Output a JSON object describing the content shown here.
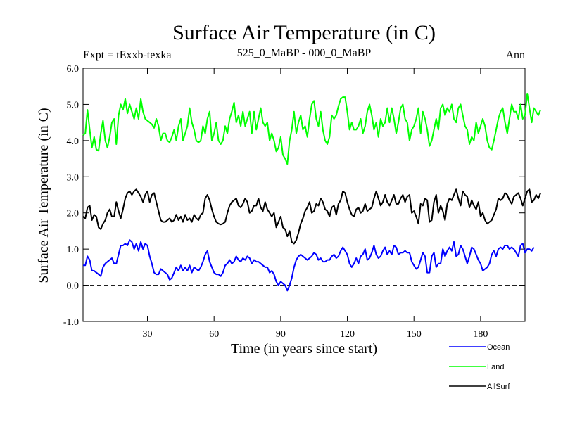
{
  "chart_data": {
    "type": "line",
    "title": "Surface Air Temperature (in C)",
    "subtitle_left": "Expt = tExxb-texka",
    "subtitle_center": "525_0_MaBP - 000_0_MaBP",
    "subtitle_right": "Ann",
    "xlabel": "Time (in years since start)",
    "ylabel": "Surface Air Temperature (in C)",
    "xlim": [
      1,
      200
    ],
    "ylim": [
      -1.0,
      6.0
    ],
    "xticks": [
      30,
      60,
      90,
      120,
      150,
      180
    ],
    "xtick_labels": [
      "30",
      "60",
      "90",
      "120",
      "150",
      "180"
    ],
    "yticks": [
      -1.0,
      0.0,
      1.0,
      2.0,
      3.0,
      4.0,
      5.0,
      6.0
    ],
    "ytick_labels": [
      "-1.0",
      "0.0",
      "1.0",
      "2.0",
      "3.0",
      "4.0",
      "5.0",
      "6.0"
    ],
    "reference_line": 0.0,
    "legend_position": "bottom-right",
    "x_start": 1,
    "x_step": 1,
    "series": [
      {
        "name": "Land",
        "color": "#00ff00",
        "values": [
          4.15,
          4.2,
          4.85,
          4.3,
          3.8,
          4.1,
          3.75,
          3.72,
          4.2,
          4.55,
          4.0,
          3.8,
          4.1,
          4.5,
          4.6,
          3.9,
          4.7,
          5.0,
          4.85,
          5.15,
          4.75,
          5.0,
          4.8,
          4.6,
          4.9,
          4.6,
          5.15,
          4.8,
          4.6,
          4.55,
          4.5,
          4.45,
          4.35,
          4.6,
          4.4,
          4.0,
          4.2,
          4.2,
          4.0,
          3.95,
          4.1,
          4.3,
          4.0,
          4.4,
          4.6,
          4.0,
          4.2,
          4.4,
          4.9,
          4.5,
          4.3,
          4.0,
          3.95,
          4.0,
          4.4,
          4.2,
          4.6,
          4.8,
          4.0,
          4.2,
          4.5,
          4.0,
          3.9,
          4.0,
          4.4,
          4.2,
          4.6,
          4.8,
          5.05,
          4.5,
          4.7,
          4.4,
          4.8,
          4.4,
          4.6,
          4.8,
          4.2,
          4.8,
          4.3,
          4.6,
          4.9,
          4.5,
          4.4,
          4.5,
          4.0,
          4.2,
          4.0,
          3.7,
          3.8,
          4.1,
          3.6,
          3.5,
          3.35,
          4.0,
          4.3,
          4.8,
          4.2,
          4.5,
          4.7,
          4.3,
          4.4,
          4.1,
          4.6,
          5.0,
          5.1,
          4.6,
          4.4,
          4.8,
          4.3,
          4.0,
          3.9,
          4.1,
          4.7,
          4.6,
          4.7,
          4.95,
          5.15,
          5.2,
          5.2,
          4.8,
          4.3,
          4.5,
          4.3,
          4.3,
          4.4,
          4.6,
          4.2,
          4.4,
          4.8,
          5.0,
          4.7,
          4.3,
          4.5,
          4.1,
          4.6,
          4.4,
          4.5,
          4.9,
          4.5,
          4.9,
          4.6,
          4.2,
          4.5,
          4.9,
          5.0,
          4.6,
          4.5,
          4.0,
          4.3,
          4.4,
          4.6,
          4.9,
          4.2,
          4.8,
          4.6,
          4.3,
          3.85,
          4.0,
          4.3,
          4.6,
          4.3,
          4.9,
          5.0,
          4.7,
          4.9,
          4.8,
          5.0,
          4.6,
          4.5,
          4.9,
          5.0,
          4.7,
          4.4,
          4.3,
          3.9,
          4.1,
          4.0,
          4.5,
          4.2,
          4.4,
          4.6,
          4.4,
          4.0,
          3.8,
          3.75,
          4.0,
          4.3,
          4.6,
          4.8,
          4.9,
          4.5,
          4.2,
          4.6,
          5.0,
          4.8,
          4.8,
          4.6,
          5.0,
          4.6,
          4.7,
          5.3,
          4.9,
          4.5,
          4.9,
          4.8,
          4.7,
          4.85
        ]
      },
      {
        "name": "AllSurf",
        "color": "#000000",
        "values": [
          1.9,
          1.85,
          2.15,
          2.2,
          1.8,
          1.95,
          1.9,
          1.6,
          1.55,
          1.7,
          1.8,
          2.0,
          2.1,
          1.9,
          1.9,
          2.3,
          2.05,
          1.85,
          2.1,
          2.4,
          2.55,
          2.6,
          2.5,
          2.6,
          2.65,
          2.55,
          2.45,
          2.3,
          2.5,
          2.6,
          2.3,
          2.5,
          2.55,
          2.3,
          2.05,
          1.8,
          1.75,
          1.75,
          1.8,
          1.85,
          1.75,
          1.8,
          1.95,
          1.8,
          1.9,
          1.75,
          1.95,
          1.8,
          1.85,
          1.75,
          1.95,
          1.85,
          1.8,
          1.95,
          2.0,
          2.4,
          2.5,
          2.35,
          2.1,
          1.9,
          1.75,
          1.7,
          1.68,
          1.7,
          1.75,
          2.0,
          2.2,
          2.3,
          2.35,
          2.4,
          2.2,
          2.15,
          2.25,
          2.4,
          2.3,
          2.0,
          2.05,
          2.2,
          2.2,
          2.4,
          2.15,
          2.05,
          2.3,
          2.1,
          2.0,
          1.9,
          2.0,
          1.6,
          1.75,
          1.9,
          1.6,
          1.55,
          1.35,
          1.5,
          1.2,
          1.15,
          1.25,
          1.45,
          1.7,
          1.85,
          2.05,
          2.15,
          2.3,
          2.0,
          2.05,
          2.25,
          2.2,
          2.4,
          2.3,
          2.1,
          2.05,
          1.9,
          2.15,
          2.2,
          1.95,
          2.25,
          2.35,
          2.6,
          2.55,
          2.3,
          2.1,
          1.95,
          1.9,
          2.1,
          2.15,
          2.0,
          2.05,
          2.25,
          2.05,
          2.1,
          2.15,
          2.4,
          2.6,
          2.4,
          2.2,
          2.3,
          2.5,
          2.3,
          2.2,
          2.35,
          2.5,
          2.25,
          2.25,
          2.4,
          2.5,
          2.3,
          2.45,
          2.5,
          2.0,
          2.05,
          1.9,
          1.7,
          2.25,
          2.2,
          2.4,
          2.35,
          1.75,
          1.8,
          2.3,
          2.5,
          2.0,
          2.2,
          2.05,
          1.8,
          2.25,
          2.4,
          2.35,
          2.5,
          2.65,
          2.4,
          2.2,
          2.6,
          2.5,
          2.45,
          2.15,
          2.35,
          2.2,
          2.1,
          2.3,
          1.9,
          2.0,
          1.8,
          1.7,
          1.75,
          1.8,
          1.95,
          2.1,
          2.4,
          2.35,
          2.4,
          2.55,
          2.5,
          2.35,
          2.25,
          2.45,
          2.5,
          2.55,
          2.4,
          2.2,
          2.4,
          2.6,
          2.65,
          2.3,
          2.35,
          2.5,
          2.4,
          2.55
        ]
      },
      {
        "name": "Ocean",
        "color": "#0000ff",
        "values": [
          0.55,
          0.55,
          0.8,
          0.7,
          0.4,
          0.4,
          0.35,
          0.3,
          0.25,
          0.5,
          0.6,
          0.65,
          0.7,
          0.75,
          0.6,
          0.6,
          0.85,
          1.1,
          1.1,
          1.15,
          1.1,
          1.25,
          1.2,
          1.0,
          1.15,
          0.95,
          1.2,
          1.0,
          1.15,
          1.1,
          0.8,
          0.6,
          0.35,
          0.3,
          0.3,
          0.45,
          0.4,
          0.35,
          0.3,
          0.15,
          0.2,
          0.35,
          0.5,
          0.4,
          0.55,
          0.4,
          0.5,
          0.4,
          0.55,
          0.35,
          0.5,
          0.45,
          0.4,
          0.5,
          0.65,
          0.85,
          0.95,
          0.65,
          0.5,
          0.35,
          0.3,
          0.3,
          0.25,
          0.35,
          0.55,
          0.6,
          0.7,
          0.6,
          0.65,
          0.8,
          0.7,
          0.65,
          0.75,
          0.7,
          0.8,
          0.75,
          0.6,
          0.7,
          0.65,
          0.65,
          0.6,
          0.55,
          0.5,
          0.5,
          0.35,
          0.4,
          0.3,
          0.1,
          0.0,
          0.1,
          0.05,
          0.0,
          -0.15,
          0.0,
          0.2,
          0.5,
          0.7,
          0.8,
          0.85,
          0.8,
          0.75,
          0.7,
          0.75,
          0.8,
          0.9,
          0.85,
          0.7,
          0.75,
          0.65,
          0.65,
          0.7,
          0.7,
          0.8,
          0.85,
          0.75,
          0.8,
          0.95,
          1.05,
          0.95,
          0.85,
          0.6,
          0.5,
          0.6,
          0.75,
          0.6,
          0.8,
          0.85,
          1.0,
          0.7,
          0.75,
          0.9,
          1.1,
          0.85,
          0.75,
          0.8,
          0.95,
          1.05,
          0.85,
          0.95,
          0.85,
          1.1,
          1.05,
          0.85,
          0.9,
          0.9,
          0.95,
          0.9,
          0.9,
          0.65,
          0.55,
          0.45,
          0.5,
          0.7,
          0.9,
          0.8,
          0.35,
          0.35,
          0.8,
          0.9,
          0.5,
          0.6,
          0.6,
          1.0,
          0.8,
          0.95,
          1.05,
          0.95,
          1.2,
          0.8,
          0.85,
          1.1,
          1.0,
          0.8,
          0.6,
          0.8,
          1.05,
          1.0,
          0.85,
          0.7,
          0.6,
          0.4,
          0.45,
          0.5,
          0.6,
          0.85,
          0.95,
          0.8,
          1.0,
          1.05,
          1.0,
          1.1,
          1.1,
          1.0,
          1.05,
          1.0,
          0.9,
          0.8,
          1.1,
          1.15,
          0.9,
          1.0,
          1.0,
          0.95,
          1.05
        ]
      }
    ]
  }
}
